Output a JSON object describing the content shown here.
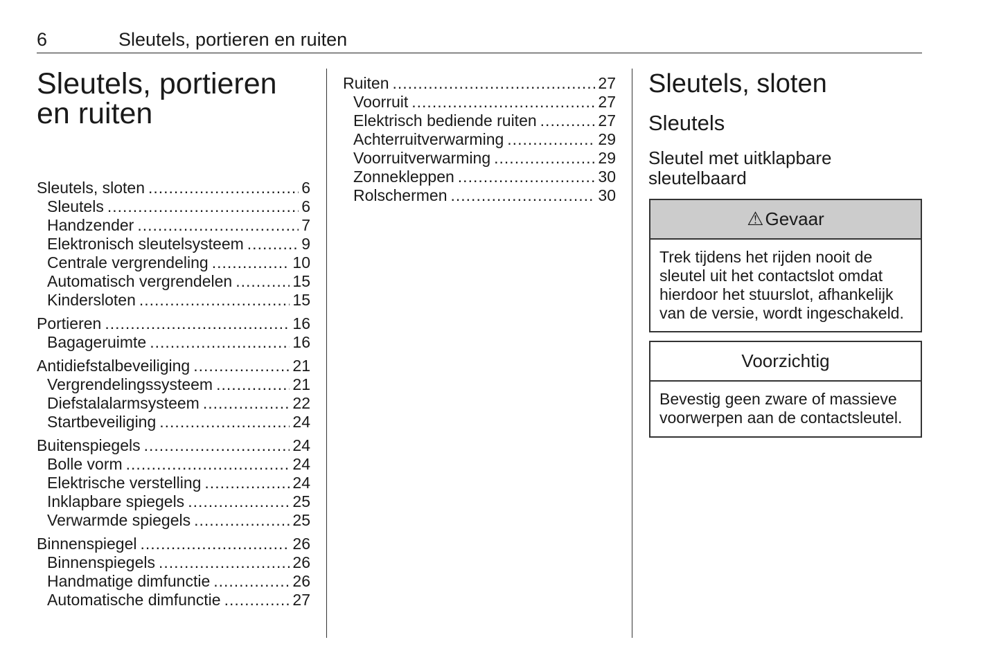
{
  "header": {
    "page_number": "6",
    "running_title": "Sleutels, portieren en ruiten"
  },
  "chapter_title": "Sleutels, portieren en ruiten",
  "toc_left": [
    {
      "label": "Sleutels, sloten",
      "page": "6",
      "level": 1
    },
    {
      "label": "Sleutels",
      "page": "6",
      "level": 2
    },
    {
      "label": "Handzender",
      "page": "7",
      "level": 2
    },
    {
      "label": "Elektronisch sleutelsysteem",
      "page": "9",
      "level": 2
    },
    {
      "label": "Centrale vergrendeling",
      "page": "10",
      "level": 2
    },
    {
      "label": "Automatisch vergrendelen",
      "page": "15",
      "level": 2
    },
    {
      "label": "Kindersloten",
      "page": "15",
      "level": 2
    },
    {
      "label": "Portieren",
      "page": "16",
      "level": 1
    },
    {
      "label": "Bagageruimte",
      "page": "16",
      "level": 2
    },
    {
      "label": "Antidiefstalbeveiliging",
      "page": "21",
      "level": 1
    },
    {
      "label": "Vergrendelingssysteem",
      "page": "21",
      "level": 2
    },
    {
      "label": "Diefstalalarmsysteem",
      "page": "22",
      "level": 2
    },
    {
      "label": "Startbeveiliging",
      "page": "24",
      "level": 2
    },
    {
      "label": "Buitenspiegels",
      "page": "24",
      "level": 1
    },
    {
      "label": "Bolle vorm",
      "page": "24",
      "level": 2
    },
    {
      "label": "Elektrische verstelling",
      "page": "24",
      "level": 2
    },
    {
      "label": "Inklapbare spiegels",
      "page": "25",
      "level": 2
    },
    {
      "label": "Verwarmde spiegels",
      "page": "25",
      "level": 2
    },
    {
      "label": "Binnenspiegel",
      "page": "26",
      "level": 1
    },
    {
      "label": "Binnenspiegels",
      "page": "26",
      "level": 2
    },
    {
      "label": "Handmatige dimfunctie",
      "page": "26",
      "level": 2
    },
    {
      "label": "Automatische dimfunctie",
      "page": "27",
      "level": 2
    }
  ],
  "toc_middle": [
    {
      "label": "Ruiten",
      "page": "27",
      "level": 1
    },
    {
      "label": "Voorruit",
      "page": "27",
      "level": 2
    },
    {
      "label": "Elektrisch bediende ruiten",
      "page": "27",
      "level": 2
    },
    {
      "label": "Achterruitverwarming",
      "page": "29",
      "level": 2
    },
    {
      "label": "Voorruitverwarming",
      "page": "29",
      "level": 2
    },
    {
      "label": "Zonnekleppen",
      "page": "30",
      "level": 2
    },
    {
      "label": "Rolschermen",
      "page": "30",
      "level": 2
    }
  ],
  "section": {
    "heading": "Sleutels, sloten",
    "subheading": "Sleutels",
    "subsubheading": "Sleutel met uitklapbare sleutelbaard"
  },
  "danger_box": {
    "icon": "warning-triangle-icon",
    "title": "Gevaar",
    "text": "Trek tijdens het rijden nooit de sleutel uit het contactslot omdat hierdoor het stuurslot, afhankelijk van de versie, wordt ingeschakeld.",
    "header_color": "#cccccc"
  },
  "caution_box": {
    "title": "Voorzichtig",
    "text": "Bevestig geen zware of massieve voorwerpen aan de contactsleutel."
  }
}
